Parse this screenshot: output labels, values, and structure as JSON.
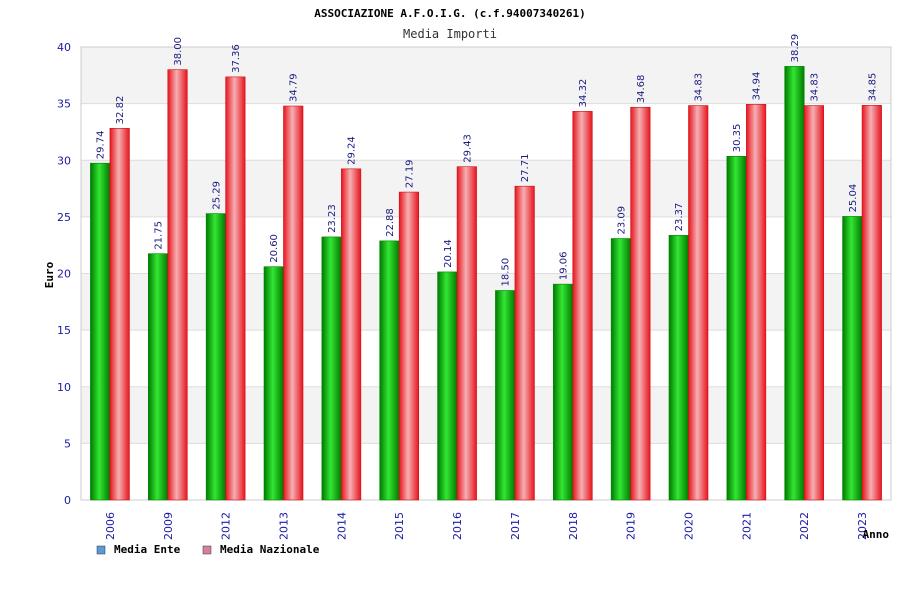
{
  "chart_data": {
    "type": "bar",
    "title": "ASSOCIAZIONE A.F.O.I.G. (c.f.94007340261)",
    "subtitle": "Media Importi",
    "xlabel": "Anno",
    "ylabel": "Euro",
    "ylim": [
      0,
      40
    ],
    "yticks": [
      0,
      5,
      10,
      15,
      20,
      25,
      30,
      35,
      40
    ],
    "grid": true,
    "legend_position": "bottom-left",
    "categories": [
      "2006",
      "2009",
      "2012",
      "2013",
      "2014",
      "2015",
      "2016",
      "2017",
      "2018",
      "2019",
      "2020",
      "2021",
      "2022",
      "2023"
    ],
    "series": [
      {
        "name": "Media Ente",
        "legend_color": "#5b9bd5",
        "color": "#00b800",
        "values": [
          29.74,
          21.75,
          25.29,
          20.6,
          23.23,
          22.88,
          20.14,
          18.5,
          19.06,
          23.09,
          23.37,
          30.35,
          38.29,
          25.04
        ],
        "labels": [
          "29.74",
          "21.75",
          "25.29",
          "20.60",
          "23.23",
          "22.88",
          "20.14",
          "18.50",
          "19.06",
          "23.09",
          "23.37",
          "30.35",
          "38.29",
          "25.04"
        ]
      },
      {
        "name": "Media Nazionale",
        "legend_color": "#d67fa3",
        "color": "#ee1c24",
        "values": [
          32.82,
          38.0,
          37.36,
          34.79,
          29.24,
          27.19,
          29.43,
          27.71,
          34.32,
          34.68,
          34.83,
          34.94,
          34.83,
          34.85
        ],
        "labels": [
          "32.82",
          "38.00",
          "37.36",
          "34.79",
          "29.24",
          "27.19",
          "29.43",
          "27.71",
          "34.32",
          "34.68",
          "34.83",
          "34.94",
          "34.83",
          "34.85"
        ]
      }
    ]
  }
}
